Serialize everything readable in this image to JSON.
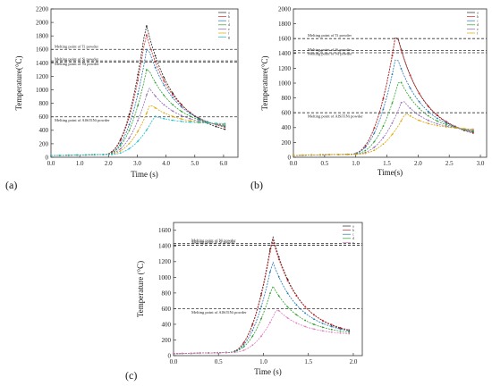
{
  "panels": [
    {
      "label": "(a)",
      "chart_data": {
        "type": "line",
        "xlabel": "Time (s)",
        "ylabel": "Temperature(°C)",
        "xlim": [
          0,
          6.5
        ],
        "ylim": [
          0,
          2200
        ],
        "xticks": [
          "0.0",
          "1.0",
          "2.0",
          "3.0",
          "4.0",
          "5.0",
          "6.0"
        ],
        "yticks": [
          "0",
          "200",
          "400",
          "600",
          "800",
          "1000",
          "1200",
          "1400",
          "1600",
          "1800",
          "2000",
          "2200"
        ],
        "hlines": [
          {
            "y": 1600,
            "text": "Melting point of Ti powder"
          },
          {
            "y": 1430,
            "text": "Melting point of Ni powder"
          },
          {
            "y": 1410,
            "text": "Melting point of Si powder"
          },
          {
            "y": 600,
            "text": "Melting point of AlSiTiNi powder"
          }
        ],
        "legend_position": "top-right",
        "series": [
          {
            "name": "a",
            "color": "#222222",
            "peak": 1990,
            "peak_x": 3.3,
            "end": 420
          },
          {
            "name": "b",
            "color": "#d62728",
            "peak": 1850,
            "peak_x": 3.3,
            "end": 450
          },
          {
            "name": "c",
            "color": "#1f77b4",
            "peak": 1660,
            "peak_x": 3.35,
            "end": 460
          },
          {
            "name": "d",
            "color": "#2ca02c",
            "peak": 1350,
            "peak_x": 3.35,
            "end": 470
          },
          {
            "name": "e",
            "color": "#9467bd",
            "peak": 1040,
            "peak_x": 3.4,
            "end": 480
          },
          {
            "name": "f",
            "color": "#e0a500",
            "peak": 790,
            "peak_x": 3.45,
            "end": 490
          },
          {
            "name": "g",
            "color": "#17becf",
            "peak": 610,
            "peak_x": 3.6,
            "end": 500
          }
        ]
      }
    },
    {
      "label": "(b)",
      "chart_data": {
        "type": "line",
        "xlabel": "Time(s)",
        "ylabel": "Temperature(°C)",
        "xlim": [
          0,
          3.1
        ],
        "ylim": [
          0,
          2000
        ],
        "xticks": [
          "0.0",
          "0.5",
          "1.0",
          "1.5",
          "2.0",
          "2.5",
          "3.0"
        ],
        "yticks": [
          "0",
          "200",
          "400",
          "600",
          "800",
          "1000",
          "1200",
          "1400",
          "1600",
          "1800",
          "2000"
        ],
        "hlines": [
          {
            "y": 1600,
            "text": "Melting point of Ti powder"
          },
          {
            "y": 1440,
            "text": "Melting point of Ni powder"
          },
          {
            "y": 1410,
            "text": "Melting point of Si powder"
          },
          {
            "y": 600,
            "text": "Melting point of AlSiTiNi powder"
          }
        ],
        "legend_position": "top-right",
        "series": [
          {
            "name": "a",
            "color": "#222222",
            "peak": 1700,
            "peak_x": 1.65,
            "end": 330
          },
          {
            "name": "b",
            "color": "#d62728",
            "peak": 1690,
            "peak_x": 1.65,
            "end": 340
          },
          {
            "name": "c",
            "color": "#1f77b4",
            "peak": 1380,
            "peak_x": 1.65,
            "end": 350
          },
          {
            "name": "d",
            "color": "#2ca02c",
            "peak": 1060,
            "peak_x": 1.7,
            "end": 360
          },
          {
            "name": "e",
            "color": "#9467bd",
            "peak": 780,
            "peak_x": 1.75,
            "end": 370
          },
          {
            "name": "f",
            "color": "#e0a500",
            "peak": 600,
            "peak_x": 1.8,
            "end": 380
          }
        ]
      }
    },
    {
      "label": "(c)",
      "chart_data": {
        "type": "line",
        "xlabel": "Time (s)",
        "ylabel": "Temperature (°C)",
        "xlim": [
          0,
          2.1
        ],
        "ylim": [
          0,
          1700
        ],
        "xticks": [
          "0.0",
          "0.5",
          "1.0",
          "1.5",
          "2.0"
        ],
        "yticks": [
          "0",
          "200",
          "400",
          "600",
          "800",
          "1000",
          "1200",
          "1400",
          "1600"
        ],
        "hlines": [
          {
            "y": 1430,
            "text": "Melting point of Ni powder"
          },
          {
            "y": 1410,
            "text": "Melting point of Si powder"
          },
          {
            "y": 600,
            "text": "Melting point of AlSiTiNi powder"
          }
        ],
        "legend_position": "top-right",
        "series": [
          {
            "name": "a",
            "color": "#222222",
            "peak": 1540,
            "peak_x": 1.1,
            "end": 320
          },
          {
            "name": "b",
            "color": "#d62728",
            "peak": 1500,
            "peak_x": 1.1,
            "end": 330
          },
          {
            "name": "c",
            "color": "#1f77b4",
            "peak": 1210,
            "peak_x": 1.1,
            "end": 320
          },
          {
            "name": "d",
            "color": "#2ca02c",
            "peak": 900,
            "peak_x": 1.1,
            "end": 300
          },
          {
            "name": "e",
            "color": "#e377c2",
            "peak": 600,
            "peak_x": 1.15,
            "end": 280
          }
        ]
      }
    }
  ]
}
